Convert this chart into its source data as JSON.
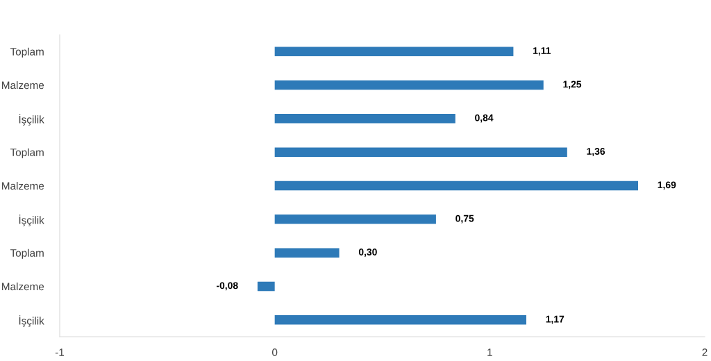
{
  "chart_data": {
    "type": "bar",
    "orientation": "horizontal",
    "categories": [
      "Toplam",
      "Malzeme",
      "İşçilik",
      "Toplam",
      "Malzeme",
      "İşçilik",
      "Toplam",
      "Malzeme",
      "İşçilik"
    ],
    "values": [
      1.11,
      1.25,
      0.84,
      1.36,
      1.69,
      0.75,
      0.3,
      -0.08,
      1.17
    ],
    "value_labels": [
      "1,11",
      "1,25",
      "0,84",
      "1,36",
      "1,69",
      "0,75",
      "0,30",
      "-0,08",
      "1,17"
    ],
    "color": "#2e7ab8",
    "xlim": [
      -1,
      2
    ],
    "xticks": [
      -1,
      0,
      1,
      2
    ],
    "grid": false,
    "legend": false
  }
}
